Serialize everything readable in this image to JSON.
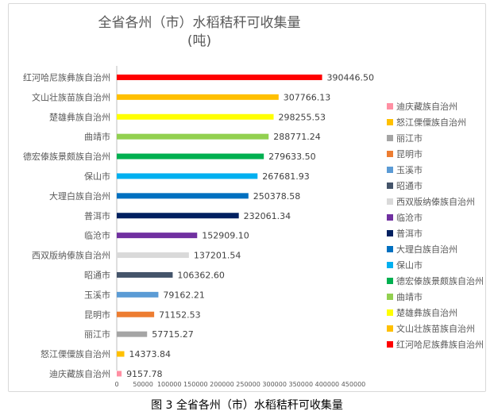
{
  "chart_data": {
    "type": "bar",
    "orientation": "horizontal",
    "title_line1": "全省各州（市）水稻秸秆可收集量",
    "title_line2": "(吨)",
    "categories": [
      "红河哈尼族彝族自治州",
      "文山壮族苗族自治州",
      "楚雄彝族自治州",
      "曲靖市",
      "德宏傣族景颇族自治州",
      "保山市",
      "大理白族自治州",
      "普洱市",
      "临沧市",
      "西双版纳傣族自治州",
      "昭通市",
      "玉溪市",
      "昆明市",
      "丽江市",
      "怒江傈僳族自治州",
      "迪庆藏族自治州"
    ],
    "values": [
      390446.5,
      307766.13,
      298255.53,
      288771.24,
      279633.5,
      267681.93,
      250378.58,
      232061.34,
      152909.1,
      137201.54,
      106362.6,
      79162.21,
      71152.53,
      57715.27,
      14373.84,
      9157.78
    ],
    "value_labels": [
      "390446.50",
      "307766.13",
      "298255.53",
      "288771.24",
      "279633.50",
      "267681.93",
      "250378.58",
      "232061.34",
      "152909.10",
      "137201.54",
      "106362.60",
      "79162.21",
      "71152.53",
      "57715.27",
      "14373.84",
      "9157.78"
    ],
    "colors": [
      "#ff0000",
      "#ffc000",
      "#ffff00",
      "#92d050",
      "#00b050",
      "#00b0f0",
      "#0070c0",
      "#002060",
      "#7030a0",
      "#d9d9d9",
      "#44546a",
      "#5b9bd5",
      "#ed7d31",
      "#a5a5a5",
      "#ffc000",
      "#ff8fa3"
    ],
    "x_ticks": [
      "0",
      "50000",
      "100000",
      "150000",
      "200000",
      "250000",
      "300000",
      "350000",
      "400000",
      "450000"
    ],
    "xlim": [
      0,
      450000
    ],
    "grid": false,
    "legend_position": "right",
    "legend": [
      {
        "label": "迪庆藏族自治州",
        "color": "#ff8fa3"
      },
      {
        "label": "怒江傈僳族自治州",
        "color": "#ffc000"
      },
      {
        "label": "丽江市",
        "color": "#a5a5a5"
      },
      {
        "label": "昆明市",
        "color": "#ed7d31"
      },
      {
        "label": "玉溪市",
        "color": "#5b9bd5"
      },
      {
        "label": "昭通市",
        "color": "#44546a"
      },
      {
        "label": "西双版纳傣族自治州",
        "color": "#d9d9d9"
      },
      {
        "label": "临沧市",
        "color": "#7030a0"
      },
      {
        "label": "普洱市",
        "color": "#002060"
      },
      {
        "label": "大理白族自治州",
        "color": "#0070c0"
      },
      {
        "label": "保山市",
        "color": "#00b0f0"
      },
      {
        "label": "德宏傣族景颇族自治州",
        "color": "#00b050"
      },
      {
        "label": "曲靖市",
        "color": "#92d050"
      },
      {
        "label": "楚雄彝族自治州",
        "color": "#ffff00"
      },
      {
        "label": "文山壮族苗族自治州",
        "color": "#ffc000"
      },
      {
        "label": "红河哈尼族彝族自治州",
        "color": "#ff0000"
      }
    ]
  },
  "caption": "图 3  全省各州（市）水稻秸秆可收集量"
}
